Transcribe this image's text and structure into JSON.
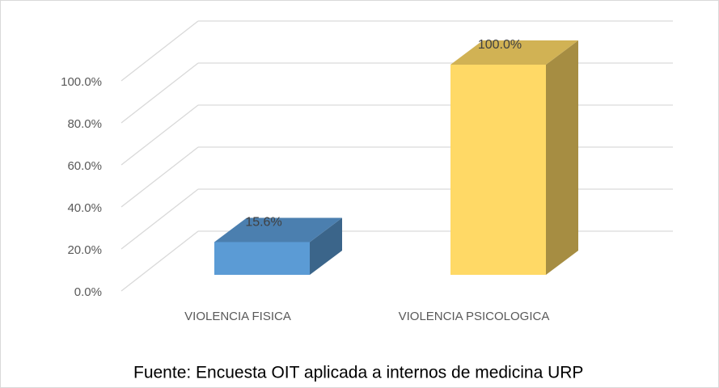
{
  "chart_data": {
    "type": "bar3d",
    "categories": [
      "VIOLENCIA FISICA",
      "VIOLENCIA PSICOLOGICA"
    ],
    "values": [
      15.6,
      100
    ],
    "value_labels": [
      "15.6%",
      "100.0%"
    ],
    "colors": [
      "#5b9bd5",
      "#ffd966"
    ],
    "ylim": [
      0,
      100
    ],
    "yticks": [
      {
        "value": 0,
        "label": "0.0%"
      },
      {
        "value": 20,
        "label": "20.0%"
      },
      {
        "value": 40,
        "label": "40.0%"
      },
      {
        "value": 60,
        "label": "60.0%"
      },
      {
        "value": 80,
        "label": "80.0%"
      },
      {
        "value": 100,
        "label": "100.0%"
      }
    ],
    "grid": true,
    "source": "Fuente: Encuesta OIT aplicada a internos de medicina URP"
  }
}
